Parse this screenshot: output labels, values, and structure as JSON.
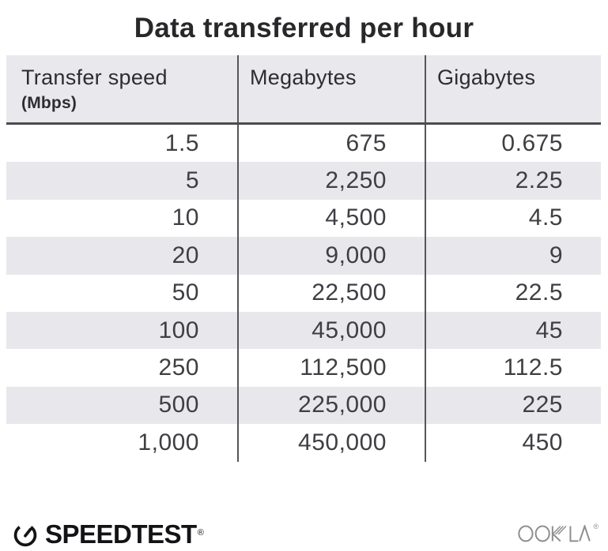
{
  "title": "Data transferred per hour",
  "table": {
    "header": {
      "col1_label": "Transfer speed",
      "col1_sub": "(Mbps)",
      "col2_label": "Megabytes",
      "col3_label": "Gigabytes"
    },
    "rows": [
      [
        "1.5",
        "675",
        "0.675"
      ],
      [
        "5",
        "2,250",
        "2.25"
      ],
      [
        "10",
        "4,500",
        "4.5"
      ],
      [
        "20",
        "9,000",
        "9"
      ],
      [
        "50",
        "22,500",
        "22.5"
      ],
      [
        "100",
        "45,000",
        "45"
      ],
      [
        "250",
        "112,500",
        "112.5"
      ],
      [
        "500",
        "225,000",
        "225"
      ],
      [
        "1,000",
        "450,000",
        "450"
      ]
    ]
  },
  "footer": {
    "brand": "SPEEDTEST",
    "brand_reg": "®",
    "company": "OOKLA",
    "company_reg": "®"
  },
  "colors": {
    "header_bg": "#e9e8ed",
    "stripe_bg": "#e8e7ec",
    "divider": "#55555a",
    "header_border": "#4b4b4f",
    "title_text": "#28282b",
    "header_text": "#2d2d30",
    "body_text": "#3f3f43",
    "brand_black": "#131316",
    "ookla_gray": "#8e8e90"
  },
  "chart_data": {
    "type": "table",
    "title": "Data transferred per hour",
    "columns": [
      "Transfer speed (Mbps)",
      "Megabytes",
      "Gigabytes"
    ],
    "rows": [
      [
        1.5,
        675,
        0.675
      ],
      [
        5,
        2250,
        2.25
      ],
      [
        10,
        4500,
        4.5
      ],
      [
        20,
        9000,
        9
      ],
      [
        50,
        22500,
        22.5
      ],
      [
        100,
        45000,
        45
      ],
      [
        250,
        112500,
        112.5
      ],
      [
        500,
        225000,
        225
      ],
      [
        1000,
        450000,
        450
      ]
    ],
    "layout": "striped rows, header shaded, two vertical column dividers, values right-aligned"
  }
}
